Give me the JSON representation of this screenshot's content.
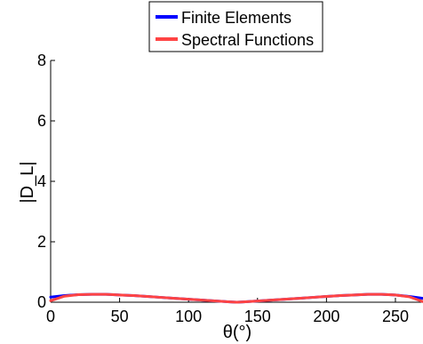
{
  "chart_data": {
    "type": "line",
    "xlabel": "θ(°)",
    "ylabel": "|D_L|",
    "xlim": [
      0,
      270
    ],
    "ylim": [
      0,
      8
    ],
    "xticks": [
      0,
      50,
      100,
      150,
      200,
      250
    ],
    "yticks": [
      0,
      2,
      4,
      6,
      8
    ],
    "xtick_labels": [
      "0",
      "50",
      "100",
      "150",
      "200",
      "250"
    ],
    "ytick_labels": [
      "0",
      "2",
      "4",
      "6",
      "8"
    ],
    "grid": false,
    "legend_position": "top-center",
    "series": [
      {
        "name": "Finite Elements",
        "color": "#0000ff",
        "x": [
          0,
          10,
          20,
          30,
          40,
          50,
          60,
          70,
          80,
          90,
          100,
          110,
          120,
          130,
          135,
          140,
          150,
          160,
          170,
          180,
          190,
          200,
          210,
          220,
          230,
          240,
          250,
          260,
          270
        ],
        "y": [
          0.17,
          0.22,
          0.25,
          0.26,
          0.26,
          0.24,
          0.22,
          0.19,
          0.16,
          0.13,
          0.1,
          0.07,
          0.04,
          0.01,
          0.0,
          0.01,
          0.04,
          0.07,
          0.1,
          0.13,
          0.16,
          0.19,
          0.22,
          0.24,
          0.26,
          0.26,
          0.24,
          0.19,
          0.13
        ]
      },
      {
        "name": "Spectral Functions",
        "color": "#ff4444",
        "x": [
          0,
          10,
          20,
          30,
          40,
          50,
          60,
          70,
          80,
          90,
          100,
          110,
          120,
          130,
          135,
          140,
          150,
          160,
          170,
          180,
          190,
          200,
          210,
          220,
          230,
          240,
          250,
          260,
          270
        ],
        "y": [
          0.05,
          0.2,
          0.25,
          0.26,
          0.26,
          0.24,
          0.22,
          0.19,
          0.16,
          0.13,
          0.1,
          0.07,
          0.04,
          0.01,
          0.0,
          0.01,
          0.04,
          0.07,
          0.1,
          0.13,
          0.16,
          0.19,
          0.22,
          0.24,
          0.26,
          0.26,
          0.24,
          0.18,
          0.02
        ]
      }
    ]
  }
}
